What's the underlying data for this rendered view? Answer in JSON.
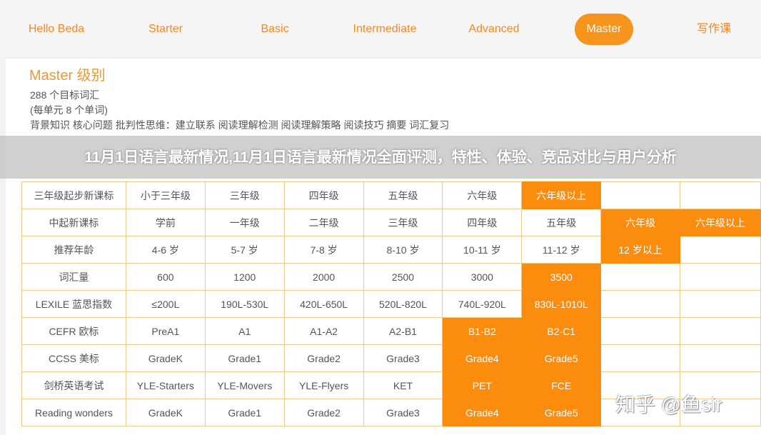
{
  "nav": {
    "items": [
      "Hello Beda",
      "Starter",
      "Basic",
      "Intermediate",
      "Advanced",
      "Master",
      "写作课"
    ],
    "active": "Master"
  },
  "level": {
    "heading": "Master 级别",
    "vocab_count": "288 个目标词汇",
    "per_unit": "(每单元 8 个单词)",
    "skills": "背景知识 核心问题 批判性思维：建立联系 阅读理解检测 阅读理解策略 阅读技巧 摘要 词汇复习"
  },
  "table": {
    "rows": [
      {
        "cells": [
          "三年级起步新课标",
          "小于三年级",
          "三年级",
          "四年级",
          "五年级",
          "六年级",
          "六年级以上",
          "",
          ""
        ],
        "highlight": [
          6
        ]
      },
      {
        "cells": [
          "中起新课标",
          "学前",
          "一年级",
          "二年级",
          "三年级",
          "四年级",
          "五年级",
          "六年级",
          "六年级以上"
        ],
        "highlight": [
          7,
          8
        ]
      },
      {
        "cells": [
          "推荐年龄",
          "4-6 岁",
          "5-7 岁",
          "7-8 岁",
          "8-10 岁",
          "10-11 岁",
          "11-12 岁",
          "12 岁以上",
          ""
        ],
        "highlight": [
          7
        ]
      },
      {
        "cells": [
          "词汇量",
          "600",
          "1200",
          "2000",
          "2500",
          "3000",
          "3500",
          "",
          ""
        ],
        "highlight": [
          6
        ]
      },
      {
        "cells": [
          "LEXILE 蓝思指数",
          "≤200L",
          "190L-530L",
          "420L-650L",
          "520L-820L",
          "740L-920L",
          "830L-1010L",
          "",
          ""
        ],
        "highlight": [
          6
        ]
      },
      {
        "cells": [
          "CEFR 欧标",
          "PreA1",
          "A1",
          "A1-A2",
          "A2-B1",
          "B1-B2",
          "B2-C1",
          "",
          ""
        ],
        "highlight": [
          5,
          6
        ]
      },
      {
        "cells": [
          "CCSS 美标",
          "GradeK",
          "Grade1",
          "Grade2",
          "Grade3",
          "Grade4",
          "Grade5",
          "",
          ""
        ],
        "highlight": [
          5,
          6
        ]
      },
      {
        "cells": [
          "剑桥英语考试",
          "YLE-Starters",
          "YLE-Movers",
          "YLE-Flyers",
          "KET",
          "PET",
          "FCE",
          "",
          ""
        ],
        "highlight": [
          5,
          6
        ]
      },
      {
        "cells": [
          "Reading wonders",
          "GradeK",
          "Grade1",
          "Grade2",
          "Grade3",
          "Grade4",
          "Grade5",
          "",
          ""
        ],
        "highlight": [
          5,
          6
        ]
      }
    ]
  },
  "overlay_title": "11月1日语言最新情况,11月1日语言最新情况全面评测，特性、体验、竞品对比与用户分析",
  "watermark": "知乎 @鱼sir",
  "colors": {
    "accent": "#f7941d",
    "border": "#e8cc90"
  }
}
